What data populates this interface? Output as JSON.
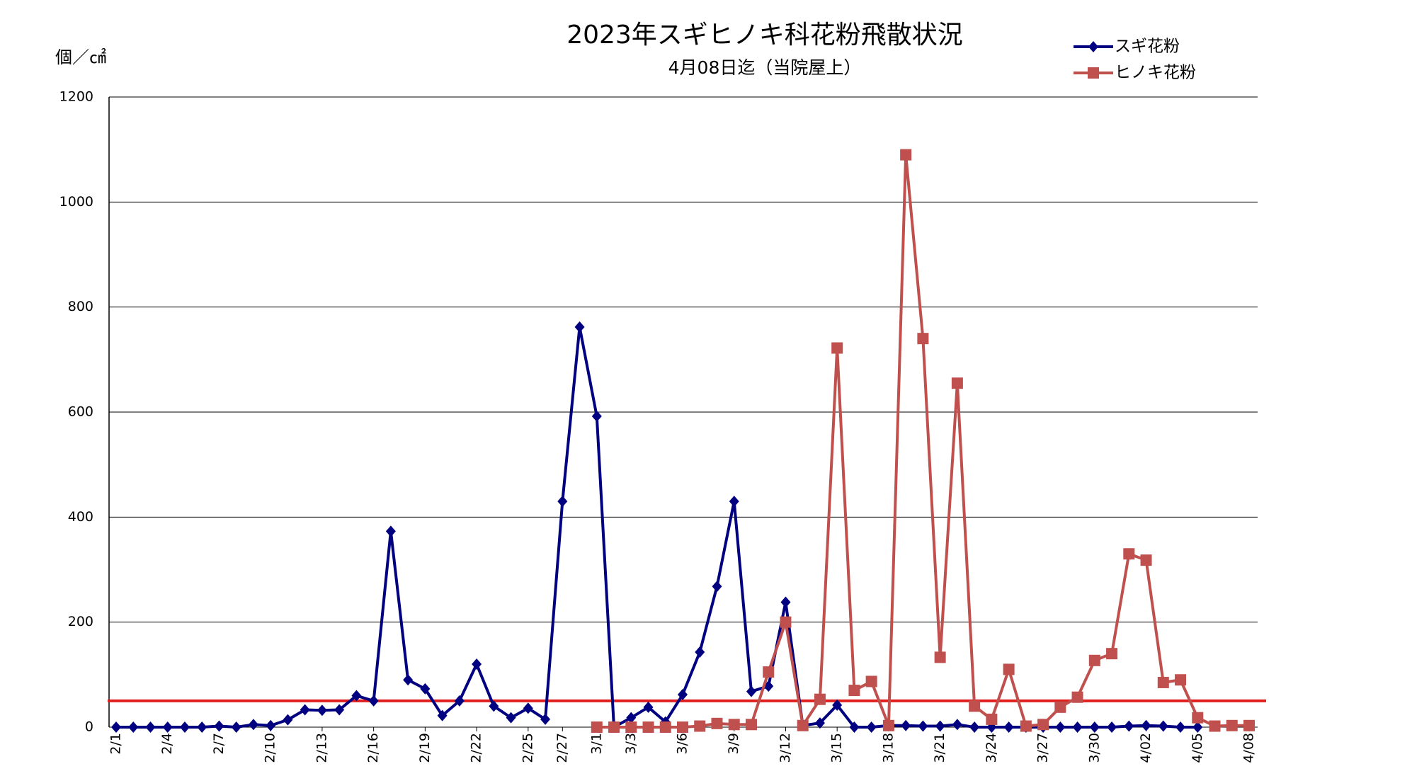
{
  "chart_data": {
    "type": "line",
    "title": "2023年スギヒノキ科花粉飛散状況",
    "subtitle": "4月08日迄（当院屋上）",
    "y_label": "個／㎠",
    "categories": [
      "2/1",
      null,
      null,
      "2/4",
      null,
      null,
      "2/7",
      null,
      null,
      "2/10",
      null,
      null,
      "2/13",
      null,
      null,
      "2/16",
      null,
      null,
      "2/19",
      null,
      null,
      "2/22",
      null,
      null,
      "2/25",
      null,
      "2/27",
      null,
      "3/1",
      null,
      "3/3",
      null,
      null,
      "3/6",
      null,
      null,
      "3/9",
      null,
      null,
      "3/12",
      null,
      null,
      "3/15",
      null,
      null,
      "3/18",
      null,
      null,
      "3/21",
      null,
      null,
      "3/24",
      null,
      null,
      "3/27",
      null,
      null,
      "3/30",
      null,
      null,
      "4/02",
      null,
      null,
      "4/05",
      null,
      null,
      "4/08"
    ],
    "series": [
      {
        "name": "スギ花粉",
        "color": "#000080",
        "marker": "diamond",
        "values": [
          0,
          0,
          0,
          0,
          0,
          0,
          2,
          0,
          5,
          3,
          14,
          33,
          32,
          33,
          60,
          50,
          373,
          90,
          73,
          22,
          50,
          120,
          40,
          18,
          36,
          15,
          430,
          762,
          592,
          0,
          18,
          38,
          10,
          62,
          143,
          268,
          430,
          68,
          78,
          238,
          3,
          8,
          42,
          0,
          0,
          3,
          3,
          2,
          2,
          5,
          0,
          0,
          0,
          0,
          0,
          0,
          0,
          0,
          0,
          2,
          3,
          2,
          0,
          0,
          null,
          null,
          null
        ]
      },
      {
        "name": "ヒノキ花粉",
        "color": "#c0504d",
        "marker": "square",
        "values": [
          null,
          null,
          null,
          null,
          null,
          null,
          null,
          null,
          null,
          null,
          null,
          null,
          null,
          null,
          null,
          null,
          null,
          null,
          null,
          null,
          null,
          null,
          null,
          null,
          null,
          null,
          null,
          null,
          0,
          0,
          0,
          0,
          0,
          0,
          2,
          7,
          5,
          5,
          105,
          200,
          3,
          53,
          722,
          70,
          87,
          3,
          1090,
          740,
          133,
          655,
          40,
          15,
          110,
          2,
          5,
          38,
          57,
          127,
          140,
          330,
          318,
          85,
          90,
          18,
          2,
          3,
          3
        ]
      }
    ],
    "reference_line": {
      "value": 50,
      "color": "#e02020"
    },
    "ylim": [
      0,
      1200
    ],
    "yticks": [
      0,
      200,
      400,
      600,
      800,
      1000,
      1200
    ],
    "grid": true,
    "legend": "top-right"
  }
}
